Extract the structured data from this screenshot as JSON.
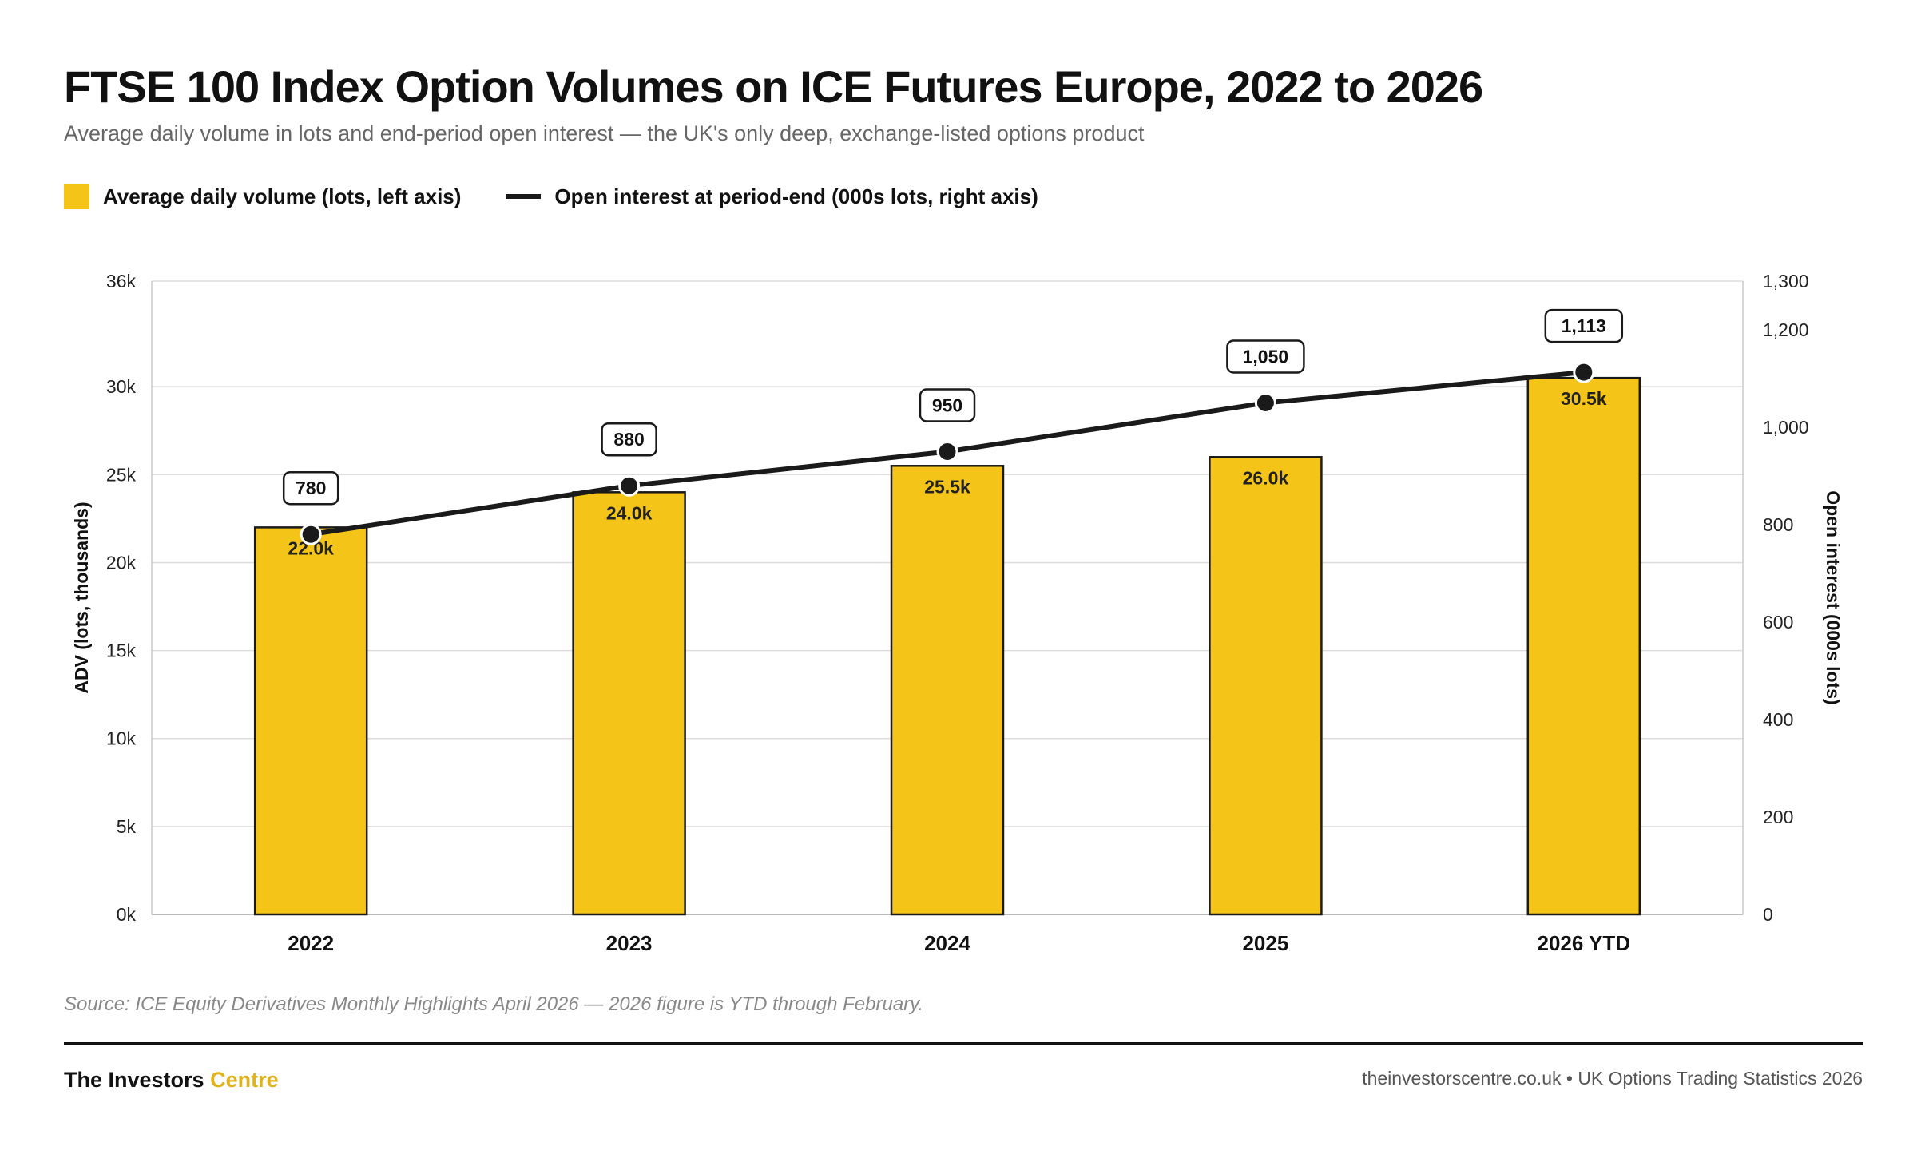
{
  "header": {
    "title": "FTSE 100 Index Option Volumes on ICE Futures Europe, 2022 to 2026",
    "subtitle": "Average daily volume in lots and end-period open interest — the UK's only deep, exchange-listed options product"
  },
  "legend": {
    "bar_label": "Average daily volume (lots, left axis)",
    "line_label": "Open interest at period-end (000s lots, right axis)"
  },
  "colors": {
    "bar": "#F4C518",
    "bar_stroke": "#1a1a1a",
    "line": "#1a1a1a",
    "grid": "#dddddd",
    "brand_accent": "#E0B21C"
  },
  "chart_data": {
    "type": "bar",
    "title": "FTSE 100 Index Option Volumes on ICE Futures Europe, 2022 to 2026",
    "categories": [
      "2022",
      "2023",
      "2024",
      "2025",
      "2026 YTD"
    ],
    "series": [
      {
        "name": "Average daily volume (lots, left axis)",
        "type": "bar",
        "axis": "left",
        "values": [
          22000,
          24000,
          25500,
          26000,
          30500
        ],
        "labels": [
          "22.0k",
          "24.0k",
          "25.5k",
          "26.0k",
          "30.5k"
        ]
      },
      {
        "name": "Open interest at period-end (000s lots, right axis)",
        "type": "line",
        "axis": "right",
        "values": [
          780,
          880,
          950,
          1050,
          1113
        ],
        "labels": [
          "780",
          "880",
          "950",
          "1,050",
          "1,113"
        ]
      }
    ],
    "ylabel": "ADV (lots, thousands)",
    "y2label": "Open interest (000s lots)",
    "ylim": [
      0,
      36000
    ],
    "y2lim": [
      0,
      1300
    ],
    "yticks": [
      0,
      5000,
      10000,
      15000,
      20000,
      25000,
      30000,
      36000
    ],
    "ytick_labels": [
      "0k",
      "5k",
      "10k",
      "15k",
      "20k",
      "25k",
      "30k",
      "36k"
    ],
    "y2ticks": [
      0,
      200,
      400,
      600,
      800,
      1000,
      1200,
      1300
    ],
    "y2tick_labels": [
      "0",
      "200",
      "400",
      "600",
      "800",
      "1,000",
      "1,200",
      "1,300"
    ],
    "grid": true,
    "legend_position": "top-left"
  },
  "footer": {
    "source": "Source: ICE Equity Derivatives Monthly Highlights April 2026 — 2026 figure is YTD through February.",
    "brand_main": "The Investors",
    "brand_accent": "Centre",
    "site": "theinvestorscentre.co.uk • UK Options Trading Statistics 2026"
  }
}
